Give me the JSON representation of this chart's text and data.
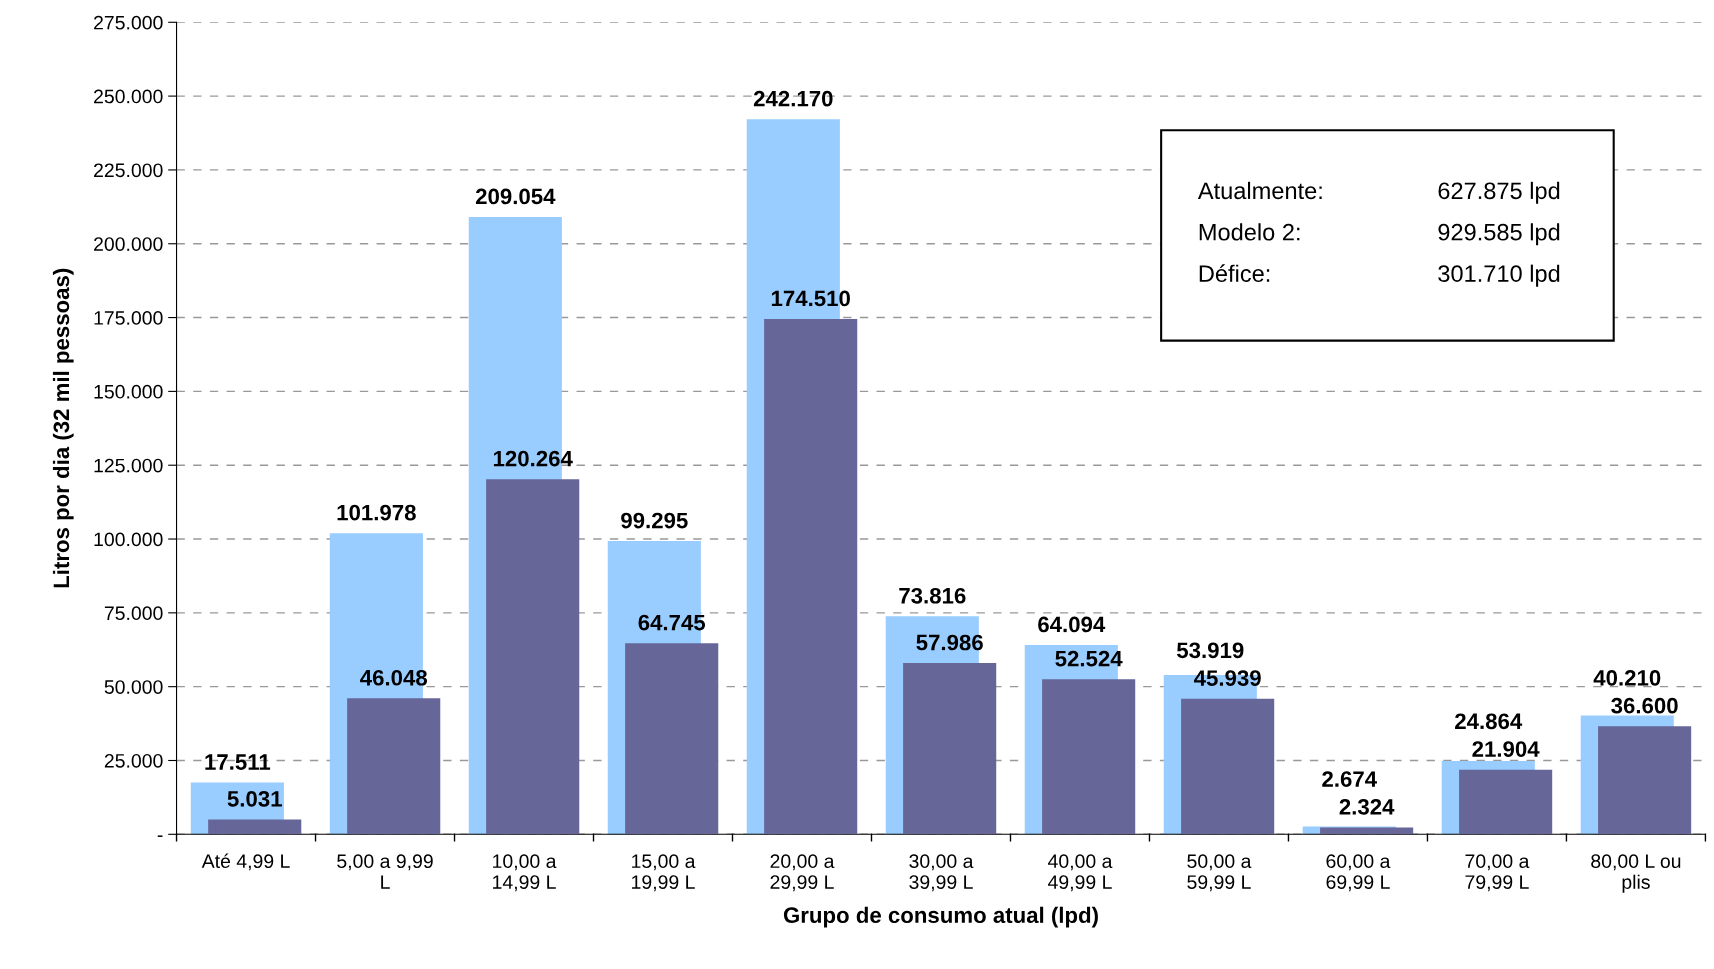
{
  "chart_data": {
    "type": "bar",
    "xlabel": "Grupo de consumo atual (lpd)",
    "ylabel": "Litros por dia (32 mil pessoas)",
    "categories": [
      "Até 4,99 L",
      "5,00 a 9,99 L",
      "10,00 a 14,99 L",
      "15,00 a 19,99 L",
      "20,00 a 29,99 L",
      "30,00 a 39,99 L",
      "40,00 a 49,99 L",
      "50,00 a 59,99 L",
      "60,00 a 69,99 L",
      "70,00 a 79,99 L",
      "80,00 L ou plis"
    ],
    "series": [
      {
        "color": "#99ccff",
        "values": [
          17511,
          101978,
          209054,
          99295,
          242170,
          73816,
          64094,
          53919,
          2674,
          24864,
          40210
        ],
        "value_labels": [
          "17.511",
          "101.978",
          "209.054",
          "99.295",
          "242.170",
          "73.816",
          "64.094",
          "53.919",
          "2.674",
          "24.864",
          "40.210"
        ]
      },
      {
        "color": "#666699",
        "values": [
          5031,
          46048,
          120264,
          64745,
          174510,
          57986,
          52524,
          45939,
          2324,
          21904,
          36600
        ],
        "value_labels": [
          "5.031",
          "46.048",
          "120.264",
          "64.745",
          "174.510",
          "57.986",
          "52.524",
          "45.939",
          "2.324",
          "21.904",
          "36.600"
        ]
      }
    ],
    "ylim": [
      0,
      275000
    ],
    "yticks": [
      {
        "value": 0,
        "label": "-"
      },
      {
        "value": 25000,
        "label": "25.000"
      },
      {
        "value": 50000,
        "label": "50.000"
      },
      {
        "value": 75000,
        "label": "75.000"
      },
      {
        "value": 100000,
        "label": "100.000"
      },
      {
        "value": 125000,
        "label": "125.000"
      },
      {
        "value": 150000,
        "label": "150.000"
      },
      {
        "value": 175000,
        "label": "175.000"
      },
      {
        "value": 200000,
        "label": "200.000"
      },
      {
        "value": 225000,
        "label": "225.000"
      },
      {
        "value": 250000,
        "label": "250.000"
      },
      {
        "value": 275000,
        "label": "275.000"
      }
    ],
    "grid": "y",
    "annotations": [
      "Atualmente:",
      "627.875 lpd",
      "Modelo 2:",
      "929.585 lpd",
      "Défice:",
      "301.710 lpd"
    ]
  }
}
